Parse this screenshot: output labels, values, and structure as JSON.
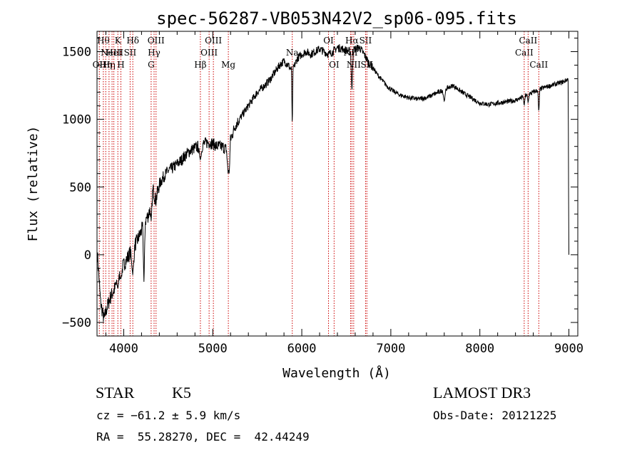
{
  "chart_data": {
    "type": "line",
    "title": "spec-56287-VB053N42V2_sp06-095.fits",
    "xlabel": "Wavelength (Å)",
    "ylabel": "Flux (relative)",
    "xlim": [
      3700,
      9100
    ],
    "ylim": [
      -600,
      1650
    ],
    "xticks": [
      4000,
      5000,
      6000,
      7000,
      8000,
      9000
    ],
    "xtick_labels": [
      "4000",
      "5000",
      "6000",
      "7000",
      "8000",
      "9000"
    ],
    "yticks": [
      -500,
      0,
      500,
      1000,
      1500
    ],
    "ytick_labels": [
      "−500",
      "0",
      "500",
      "1000",
      "1500"
    ],
    "line_color": "#000000",
    "marker_color": "#cc0000",
    "spectrum_anchors": [
      [
        3705,
        0
      ],
      [
        3720,
        -150
      ],
      [
        3740,
        -350
      ],
      [
        3760,
        -420
      ],
      [
        3780,
        -480
      ],
      [
        3800,
        -420
      ],
      [
        3830,
        -350
      ],
      [
        3860,
        -300
      ],
      [
        3900,
        -250
      ],
      [
        3940,
        -150
      ],
      [
        3980,
        -100
      ],
      [
        4020,
        -50
      ],
      [
        4060,
        0
      ],
      [
        4100,
        50
      ],
      [
        4150,
        100
      ],
      [
        4200,
        180
      ],
      [
        4250,
        260
      ],
      [
        4280,
        300
      ],
      [
        4300,
        350
      ],
      [
        4330,
        480
      ],
      [
        4360,
        400
      ],
      [
        4400,
        520
      ],
      [
        4450,
        580
      ],
      [
        4500,
        620
      ],
      [
        4550,
        640
      ],
      [
        4600,
        670
      ],
      [
        4650,
        700
      ],
      [
        4700,
        740
      ],
      [
        4750,
        770
      ],
      [
        4800,
        790
      ],
      [
        4850,
        800
      ],
      [
        4900,
        820
      ],
      [
        4950,
        830
      ],
      [
        5000,
        820
      ],
      [
        5050,
        800
      ],
      [
        5100,
        800
      ],
      [
        5150,
        780
      ],
      [
        5200,
        850
      ],
      [
        5250,
        950
      ],
      [
        5300,
        1000
      ],
      [
        5350,
        1050
      ],
      [
        5400,
        1100
      ],
      [
        5450,
        1150
      ],
      [
        5500,
        1200
      ],
      [
        5550,
        1230
      ],
      [
        5600,
        1260
      ],
      [
        5650,
        1300
      ],
      [
        5700,
        1350
      ],
      [
        5750,
        1400
      ],
      [
        5800,
        1430
      ],
      [
        5850,
        1400
      ],
      [
        5893,
        1350
      ],
      [
        5920,
        1400
      ],
      [
        5950,
        1450
      ],
      [
        6000,
        1480
      ],
      [
        6050,
        1500
      ],
      [
        6100,
        1480
      ],
      [
        6150,
        1500
      ],
      [
        6200,
        1520
      ],
      [
        6250,
        1500
      ],
      [
        6300,
        1480
      ],
      [
        6350,
        1500
      ],
      [
        6400,
        1530
      ],
      [
        6450,
        1520
      ],
      [
        6500,
        1510
      ],
      [
        6550,
        1500
      ],
      [
        6600,
        1520
      ],
      [
        6650,
        1530
      ],
      [
        6700,
        1480
      ],
      [
        6750,
        1420
      ],
      [
        6800,
        1380
      ],
      [
        6850,
        1330
      ],
      [
        6900,
        1290
      ],
      [
        6950,
        1250
      ],
      [
        7000,
        1220
      ],
      [
        7050,
        1200
      ],
      [
        7100,
        1180
      ],
      [
        7150,
        1170
      ],
      [
        7200,
        1160
      ],
      [
        7300,
        1150
      ],
      [
        7400,
        1160
      ],
      [
        7500,
        1190
      ],
      [
        7600,
        1220
      ],
      [
        7700,
        1250
      ],
      [
        7800,
        1200
      ],
      [
        7900,
        1160
      ],
      [
        8000,
        1120
      ],
      [
        8100,
        1110
      ],
      [
        8200,
        1120
      ],
      [
        8300,
        1130
      ],
      [
        8400,
        1140
      ],
      [
        8500,
        1170
      ],
      [
        8600,
        1200
      ],
      [
        8700,
        1230
      ],
      [
        8800,
        1250
      ],
      [
        8900,
        1270
      ],
      [
        8950,
        1280
      ],
      [
        8990,
        1300
      ],
      [
        9000,
        1100
      ]
    ],
    "dips": [
      [
        3934,
        -250,
        20
      ],
      [
        3968,
        -180,
        20
      ],
      [
        4101,
        -150,
        25
      ],
      [
        4227,
        -200,
        15
      ],
      [
        4308,
        250,
        15
      ],
      [
        4861,
        700,
        25
      ],
      [
        5172,
        600,
        20
      ],
      [
        5184,
        600,
        15
      ],
      [
        5893,
        930,
        8
      ],
      [
        6563,
        1200,
        15
      ],
      [
        7600,
        1130,
        20
      ],
      [
        8498,
        1100,
        12
      ],
      [
        8542,
        1120,
        12
      ],
      [
        8662,
        1050,
        12
      ],
      [
        9000,
        0,
        8
      ]
    ],
    "line_markers": [
      {
        "wavelength": 3726,
        "label": "OII",
        "row": 3
      },
      {
        "wavelength": 3771,
        "label": "Hθ",
        "row": 1
      },
      {
        "wavelength": 3798,
        "label": "Hη",
        "row": 3
      },
      {
        "wavelength": 3835,
        "label": "Hη",
        "row": 3
      },
      {
        "wavelength": 3869,
        "label": "NeIII",
        "row": 2
      },
      {
        "wavelength": 3889,
        "label": "HeI",
        "row": 2
      },
      {
        "wavelength": 3934,
        "label": "K",
        "row": 1
      },
      {
        "wavelength": 3968,
        "label": "H",
        "row": 3
      },
      {
        "wavelength": 4072,
        "label": "SII",
        "row": 2
      },
      {
        "wavelength": 4102,
        "label": "Hδ",
        "row": 1
      },
      {
        "wavelength": 4308,
        "label": "G",
        "row": 3
      },
      {
        "wavelength": 4341,
        "label": "Hγ",
        "row": 2
      },
      {
        "wavelength": 4363,
        "label": "OIII",
        "row": 1
      },
      {
        "wavelength": 4861,
        "label": "Hβ",
        "row": 3
      },
      {
        "wavelength": 4959,
        "label": "OIII",
        "row": 2
      },
      {
        "wavelength": 5007,
        "label": "OIII",
        "row": 1
      },
      {
        "wavelength": 5175,
        "label": "Mg",
        "row": 3
      },
      {
        "wavelength": 5893,
        "label": "Na",
        "row": 2
      },
      {
        "wavelength": 6300,
        "label": "OI",
        "row": 1
      },
      {
        "wavelength": 6363,
        "label": "OI",
        "row": 3
      },
      {
        "wavelength": 6548,
        "label": "NII",
        "row": 2
      },
      {
        "wavelength": 6563,
        "label": "Hα",
        "row": 1
      },
      {
        "wavelength": 6583,
        "label": "NII",
        "row": 3
      },
      {
        "wavelength": 6716,
        "label": "SII",
        "row": 1
      },
      {
        "wavelength": 6731,
        "label": "SII",
        "row": 3
      },
      {
        "wavelength": 8498,
        "label": "CaII",
        "row": 2
      },
      {
        "wavelength": 8542,
        "label": "CaII",
        "row": 1
      },
      {
        "wavelength": 8662,
        "label": "CaII",
        "row": 3
      }
    ]
  },
  "info": {
    "class": "STAR",
    "subclass": "K5",
    "survey": "LAMOST DR3",
    "redshift": "cz = −61.2 ± 5.9 km/s",
    "obsdate": "Obs-Date: 20121225",
    "coords": "RA =  55.28270, DEC =  42.44249"
  }
}
